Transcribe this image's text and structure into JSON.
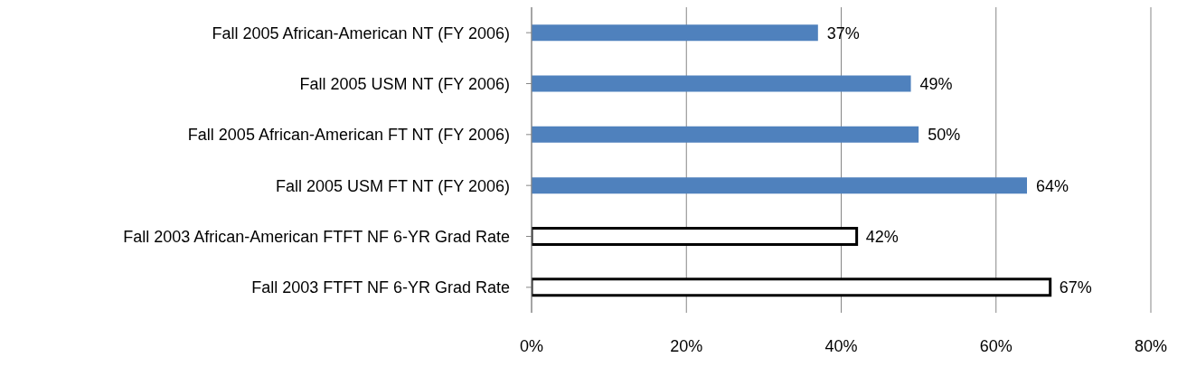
{
  "chart_data": {
    "type": "bar",
    "orientation": "horizontal",
    "categories": [
      "Fall 2005 African-American NT  (FY 2006)",
      "Fall 2005 USM NT  (FY 2006)",
      "Fall 2005 African-American FT NT  (FY 2006)",
      "Fall 2005 USM FT NT  (FY 2006)",
      "Fall 2003 African-American FTFT NF 6-YR Grad Rate",
      "Fall 2003 FTFT NF 6-YR Grad Rate"
    ],
    "values": [
      37,
      49,
      50,
      64,
      42,
      67
    ],
    "value_labels": [
      "37%",
      "49%",
      "50%",
      "64%",
      "42%",
      "67%"
    ],
    "colors": [
      "#4f81bd",
      "#4f81bd",
      "#4f81bd",
      "#4f81bd",
      "#ffffff",
      "#ffffff"
    ],
    "xlim": [
      0,
      80
    ],
    "xticks": [
      {
        "value": 0,
        "label": "0%"
      },
      {
        "value": 20,
        "label": "20%"
      },
      {
        "value": 40,
        "label": "40%"
      },
      {
        "value": 60,
        "label": "60%"
      },
      {
        "value": 80,
        "label": "80%"
      }
    ],
    "grid": "x"
  }
}
